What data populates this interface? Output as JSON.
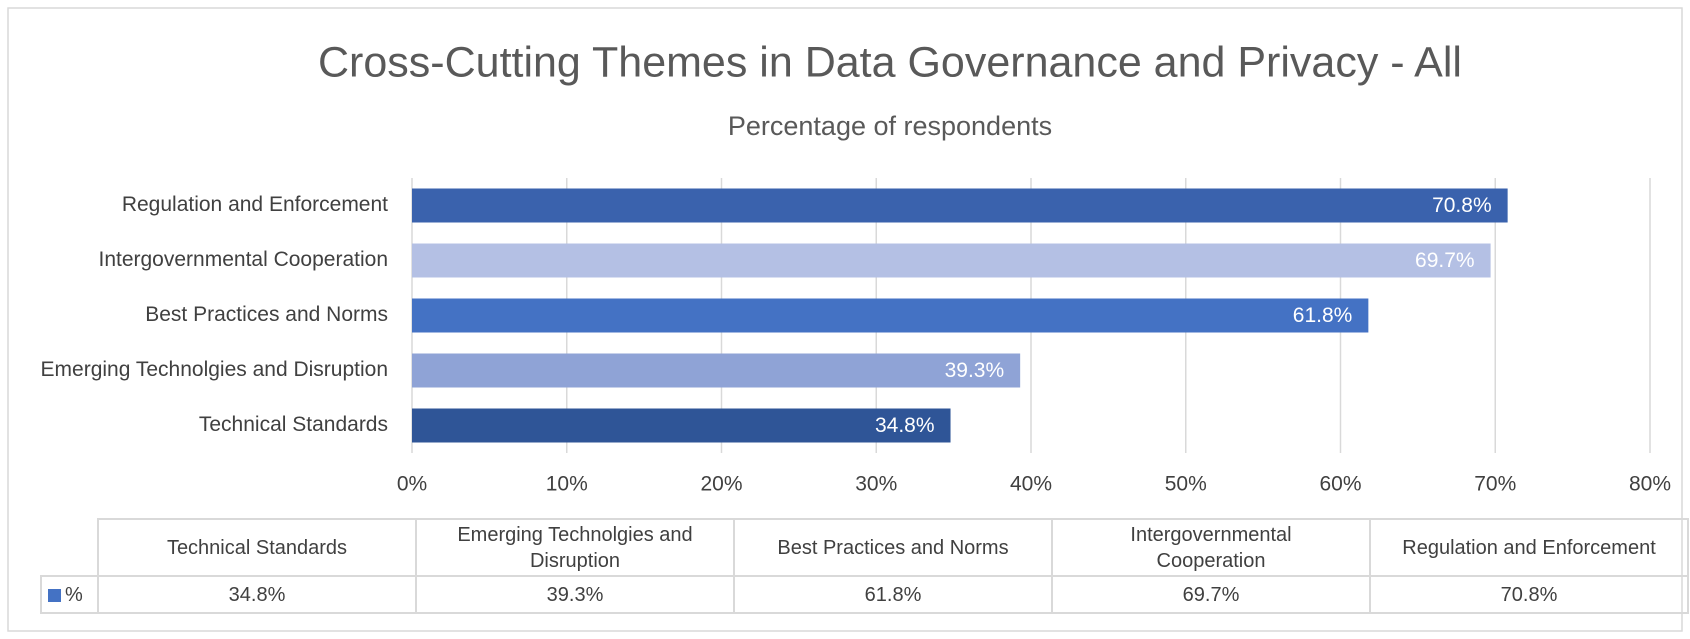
{
  "chart_data": {
    "type": "barh",
    "title": "Cross-Cutting Themes in Data Governance and Privacy - All",
    "subtitle": "Percentage of respondents",
    "categories": [
      "Technical Standards",
      "Emerging Technolgies and Disruption",
      "Best Practices and Norms",
      "Intergovernmental Cooperation",
      "Regulation and Enforcement"
    ],
    "series": [
      {
        "name": "%",
        "color": "#4472c4",
        "values": [
          34.8,
          39.3,
          61.8,
          69.7,
          70.8
        ],
        "value_labels": [
          "34.8%",
          "39.3%",
          "61.8%",
          "69.7%",
          "70.8%"
        ],
        "colors": [
          "#2f5597",
          "#8fa3d6",
          "#4472c4",
          "#b4c0e4",
          "#3a62ad"
        ]
      }
    ],
    "xlim": [
      0,
      80
    ],
    "xticks": [
      {
        "value": 0,
        "label": "0%"
      },
      {
        "value": 10,
        "label": "10%"
      },
      {
        "value": 20,
        "label": "20%"
      },
      {
        "value": 30,
        "label": "30%"
      },
      {
        "value": 40,
        "label": "40%"
      },
      {
        "value": 50,
        "label": "50%"
      },
      {
        "value": 60,
        "label": "60%"
      },
      {
        "value": 70,
        "label": "70%"
      },
      {
        "value": 80,
        "label": "80%"
      }
    ],
    "grid": true,
    "data_table": true
  }
}
